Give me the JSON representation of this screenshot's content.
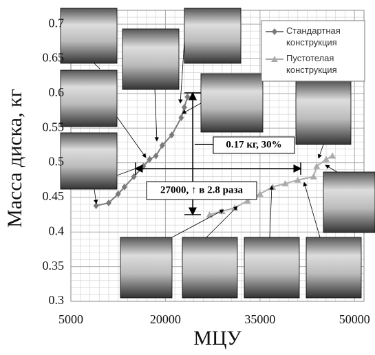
{
  "chart_data": {
    "type": "line",
    "xlabel": "МЦУ",
    "ylabel": "Масса диска, кг",
    "xlim": [
      5000,
      51500
    ],
    "ylim": [
      0.3,
      0.72
    ],
    "xticks": [
      5000,
      20000,
      35000,
      50000
    ],
    "yticks": [
      0.3,
      0.35,
      0.4,
      0.45,
      0.5,
      0.55,
      0.6,
      0.65,
      0.7
    ],
    "grid": true,
    "legend": "upper right",
    "series": [
      {
        "name": "Стандартная конструкция",
        "color": "#7a7a7a",
        "marker": "diamond",
        "x": [
          9000,
          11000,
          12500,
          13500,
          15000,
          16500,
          17500,
          18500,
          19500,
          21000,
          22500,
          23000,
          23500
        ],
        "values": [
          0.438,
          0.442,
          0.455,
          0.465,
          0.48,
          0.495,
          0.505,
          0.51,
          0.525,
          0.54,
          0.565,
          0.58,
          0.595
        ]
      },
      {
        "name": "Пустотелая конструкция",
        "color": "#ababab",
        "marker": "triangle",
        "x": [
          27000,
          29000,
          31000,
          33000,
          35000,
          37000,
          39000,
          41000,
          43500,
          44000,
          45500,
          46500
        ],
        "values": [
          0.425,
          0.43,
          0.435,
          0.445,
          0.455,
          0.465,
          0.47,
          0.475,
          0.48,
          0.495,
          0.505,
          0.51
        ]
      }
    ],
    "annotations": [
      "0.17 кг, 30%",
      "27000, ↑ в 2.8 раза"
    ]
  }
}
